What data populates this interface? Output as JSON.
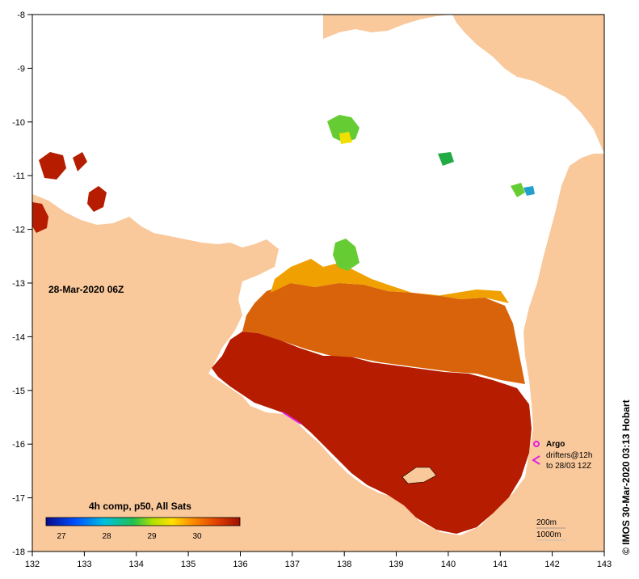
{
  "map": {
    "timestamp_label": "28-Mar-2020 06Z",
    "credit": "© IMOS 30-Mar-2020 03:13 Hobart",
    "x_ticks": [
      "132",
      "133",
      "134",
      "135",
      "136",
      "137",
      "138",
      "139",
      "140",
      "141",
      "142",
      "143"
    ],
    "y_ticks": [
      "-8",
      "-9",
      "-10",
      "-11",
      "-12",
      "-13",
      "-14",
      "-15",
      "-16",
      "-17",
      "-18"
    ],
    "colors": {
      "land": "#f9c89b",
      "sea_missing": "#ffffff",
      "sst_hot": "#b51c00",
      "sst_warm": "#d9630a",
      "sst_mid": "#f0a000",
      "sst_cool": "#66cc33"
    }
  },
  "legend_colorbar": {
    "title": "4h comp, p50, All Sats",
    "ticks": [
      "27",
      "28",
      "29",
      "30"
    ]
  },
  "legend_symbols": {
    "argo_label": "Argo",
    "drifters_label": "drifters@12h",
    "drifters_date": "to 28/03 12Z",
    "argo_color": "#e020e0"
  },
  "depth_contours": {
    "shallow_label": "200m",
    "deep_label": "1000m"
  }
}
